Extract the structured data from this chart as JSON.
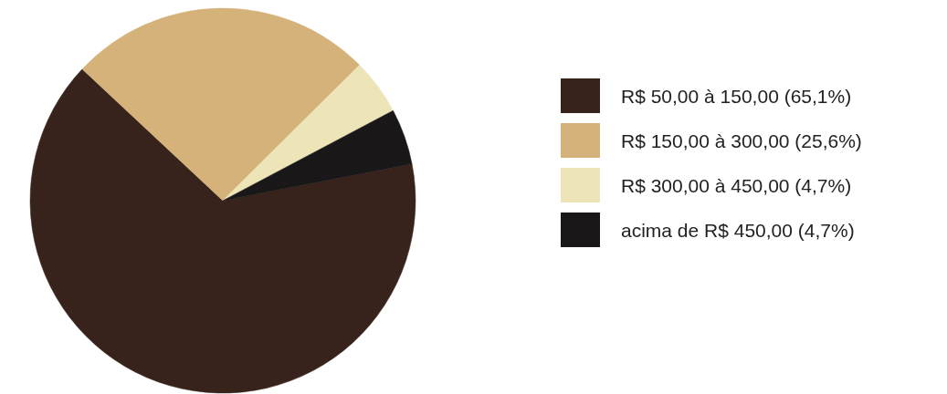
{
  "chart_data": {
    "type": "pie",
    "categories": [
      "R$ 50,00 à 150,00 (65,1%)",
      "R$ 150,00 à 300,00 (25,6%)",
      "R$ 300,00 à 450,00 (4,7%)",
      "acima de R$ 450,00 (4,7%)"
    ],
    "values": [
      65.1,
      25.6,
      4.7,
      4.7
    ],
    "colors": [
      "#38231c",
      "#d4b27a",
      "#ede5b8",
      "#1a1718"
    ],
    "legend": "right"
  }
}
